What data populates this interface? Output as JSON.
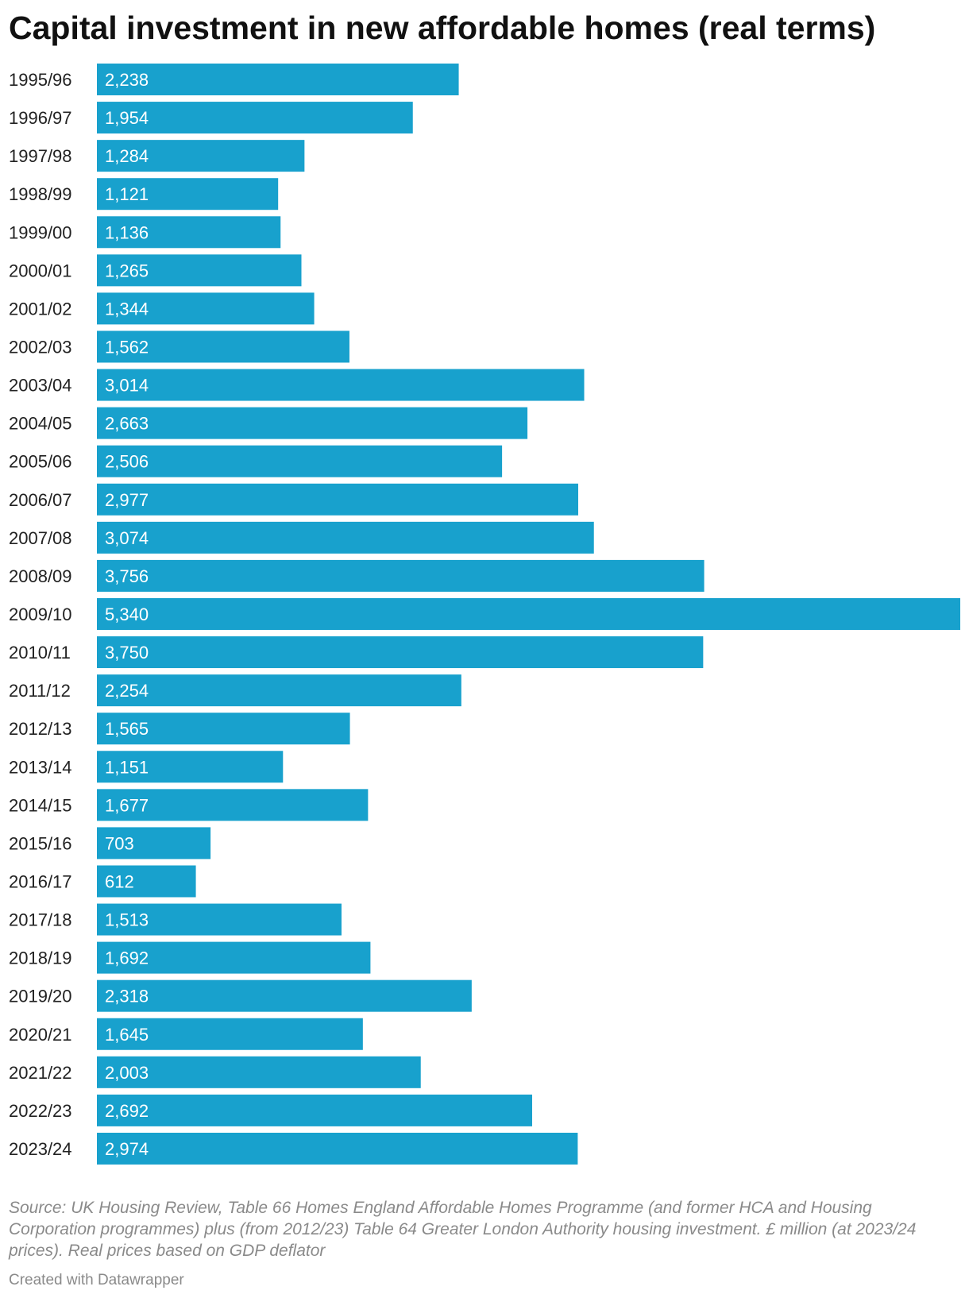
{
  "chart_data": {
    "type": "bar",
    "orientation": "horizontal",
    "title": "Capital investment in new affordable homes (real terms)",
    "categories": [
      "1995/96",
      "1996/97",
      "1997/98",
      "1998/99",
      "1999/00",
      "2000/01",
      "2001/02",
      "2002/03",
      "2003/04",
      "2004/05",
      "2005/06",
      "2006/07",
      "2007/08",
      "2008/09",
      "2009/10",
      "2010/11",
      "2011/12",
      "2012/13",
      "2013/14",
      "2014/15",
      "2015/16",
      "2016/17",
      "2017/18",
      "2018/19",
      "2019/20",
      "2020/21",
      "2021/22",
      "2022/23",
      "2023/24"
    ],
    "values": [
      2238,
      1954,
      1284,
      1121,
      1136,
      1265,
      1344,
      1562,
      3014,
      2663,
      2506,
      2977,
      3074,
      3756,
      5340,
      3750,
      2254,
      1565,
      1151,
      1677,
      703,
      612,
      1513,
      1692,
      2318,
      1645,
      2003,
      2692,
      2974
    ],
    "value_labels": [
      "2,238",
      "1,954",
      "1,284",
      "1,121",
      "1,136",
      "1,265",
      "1,344",
      "1,562",
      "3,014",
      "2,663",
      "2,506",
      "2,977",
      "3,074",
      "3,756",
      "5,340",
      "3,750",
      "2,254",
      "1,565",
      "1,151",
      "1,677",
      "703",
      "612",
      "1,513",
      "1,692",
      "2,318",
      "1,645",
      "2,003",
      "2,692",
      "2,974"
    ],
    "xlim": [
      0,
      5340
    ],
    "grid": false,
    "bar_color": "#18a1cd",
    "notes": "Source: UK Housing Review, Table 66 Homes England Affordable Homes Programme (and former HCA and Housing Corporation programmes) plus (from 2012/23) Table 64 Greater London Authority housing investment. £ million (at 2023/24 prices). Real prices based on GDP deflator",
    "credit": "Created with Datawrapper"
  }
}
